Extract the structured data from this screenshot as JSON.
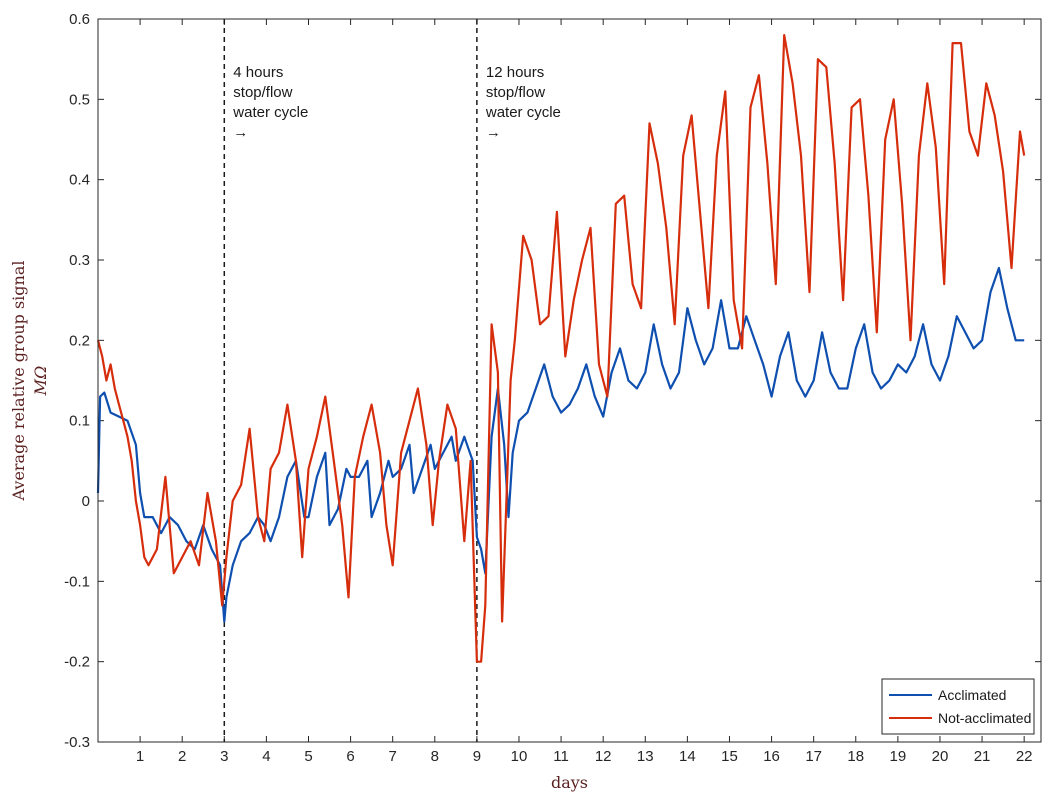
{
  "chart_data": {
    "type": "line",
    "title": "",
    "xlabel": "days",
    "ylabel_line1": "Average relative group signal",
    "ylabel_line2": "MΩ",
    "xlim": [
      0,
      22.4
    ],
    "ylim": [
      -0.3,
      0.6
    ],
    "x_ticks": [
      1,
      2,
      3,
      4,
      5,
      6,
      7,
      8,
      9,
      10,
      11,
      12,
      13,
      14,
      15,
      16,
      17,
      18,
      19,
      20,
      21,
      22
    ],
    "y_ticks": [
      -0.3,
      -0.2,
      -0.1,
      0,
      0.1,
      0.2,
      0.3,
      0.4,
      0.5,
      0.6
    ],
    "y_tick_labels": [
      "-0.3",
      "-0.2",
      "-0.1",
      "0",
      "0.1",
      "0.2",
      "0.3",
      "0.4",
      "0.5",
      "0.6"
    ],
    "grid": false,
    "legend_position": "bottom-right",
    "annotations": [
      {
        "x": 3,
        "lines": [
          "4 hours",
          "stop/flow",
          "water cycle",
          "→"
        ]
      },
      {
        "x": 9,
        "lines": [
          "12 hours",
          "stop/flow",
          "water cycle",
          "→"
        ]
      }
    ],
    "series": [
      {
        "name": "Acclimated",
        "color": "#0e4fb0",
        "x": [
          0,
          0.05,
          0.15,
          0.3,
          0.5,
          0.7,
          0.9,
          1.0,
          1.1,
          1.3,
          1.5,
          1.7,
          1.9,
          2.1,
          2.3,
          2.5,
          2.7,
          2.9,
          3.0,
          3.05,
          3.2,
          3.4,
          3.6,
          3.8,
          3.95,
          4.1,
          4.3,
          4.5,
          4.7,
          4.9,
          5.0,
          5.2,
          5.4,
          5.5,
          5.7,
          5.9,
          6.0,
          6.2,
          6.4,
          6.5,
          6.7,
          6.9,
          7.0,
          7.2,
          7.4,
          7.5,
          7.7,
          7.9,
          8.0,
          8.2,
          8.4,
          8.5,
          8.7,
          8.8,
          8.9,
          9.0,
          9.1,
          9.2,
          9.35,
          9.5,
          9.65,
          9.75,
          9.85,
          10.0,
          10.2,
          10.4,
          10.6,
          10.8,
          11.0,
          11.2,
          11.4,
          11.6,
          11.8,
          12.0,
          12.2,
          12.4,
          12.6,
          12.8,
          13.0,
          13.2,
          13.4,
          13.6,
          13.8,
          14.0,
          14.2,
          14.4,
          14.6,
          14.8,
          15.0,
          15.2,
          15.4,
          15.6,
          15.8,
          16.0,
          16.2,
          16.4,
          16.6,
          16.8,
          17.0,
          17.2,
          17.4,
          17.6,
          17.8,
          18.0,
          18.2,
          18.4,
          18.6,
          18.8,
          19.0,
          19.2,
          19.4,
          19.6,
          19.8,
          20.0,
          20.2,
          20.4,
          20.6,
          20.8,
          21.0,
          21.2,
          21.4,
          21.6,
          21.8,
          22.0
        ],
        "y": [
          0.01,
          0.13,
          0.135,
          0.11,
          0.105,
          0.1,
          0.07,
          0.01,
          -0.02,
          -0.02,
          -0.04,
          -0.02,
          -0.03,
          -0.05,
          -0.06,
          -0.03,
          -0.06,
          -0.08,
          -0.15,
          -0.12,
          -0.08,
          -0.05,
          -0.04,
          -0.02,
          -0.03,
          -0.05,
          -0.02,
          0.03,
          0.05,
          -0.02,
          -0.02,
          0.03,
          0.06,
          -0.03,
          -0.01,
          0.04,
          0.03,
          0.03,
          0.05,
          -0.02,
          0.01,
          0.05,
          0.03,
          0.04,
          0.07,
          0.01,
          0.04,
          0.07,
          0.04,
          0.06,
          0.08,
          0.05,
          0.08,
          0.065,
          0.05,
          -0.045,
          -0.06,
          -0.09,
          0.08,
          0.14,
          0.07,
          -0.02,
          0.06,
          0.1,
          0.11,
          0.14,
          0.17,
          0.13,
          0.11,
          0.12,
          0.14,
          0.17,
          0.13,
          0.105,
          0.16,
          0.19,
          0.15,
          0.14,
          0.16,
          0.22,
          0.17,
          0.14,
          0.16,
          0.24,
          0.2,
          0.17,
          0.19,
          0.25,
          0.19,
          0.19,
          0.23,
          0.2,
          0.17,
          0.13,
          0.18,
          0.21,
          0.15,
          0.13,
          0.15,
          0.21,
          0.16,
          0.14,
          0.14,
          0.19,
          0.22,
          0.16,
          0.14,
          0.15,
          0.17,
          0.16,
          0.18,
          0.22,
          0.17,
          0.15,
          0.18,
          0.23,
          0.21,
          0.19,
          0.2,
          0.26,
          0.29,
          0.24,
          0.2,
          0.2
        ]
      },
      {
        "name": "Not-acclimated",
        "color": "#d62d0c",
        "x": [
          0,
          0.1,
          0.2,
          0.3,
          0.4,
          0.5,
          0.6,
          0.7,
          0.8,
          0.9,
          1.0,
          1.1,
          1.2,
          1.4,
          1.6,
          1.8,
          2.0,
          2.2,
          2.4,
          2.6,
          2.8,
          2.95,
          3.05,
          3.2,
          3.4,
          3.6,
          3.8,
          3.95,
          4.1,
          4.3,
          4.5,
          4.7,
          4.85,
          5.0,
          5.2,
          5.4,
          5.6,
          5.8,
          5.95,
          6.1,
          6.3,
          6.5,
          6.7,
          6.85,
          7.0,
          7.2,
          7.4,
          7.6,
          7.8,
          7.95,
          8.1,
          8.3,
          8.5,
          8.7,
          8.85,
          9.0,
          9.1,
          9.2,
          9.35,
          9.5,
          9.6,
          9.7,
          9.8,
          9.9,
          10.1,
          10.3,
          10.5,
          10.7,
          10.9,
          11.1,
          11.3,
          11.5,
          11.7,
          11.9,
          12.1,
          12.3,
          12.5,
          12.7,
          12.9,
          13.1,
          13.3,
          13.5,
          13.7,
          13.9,
          14.1,
          14.3,
          14.5,
          14.7,
          14.9,
          15.1,
          15.3,
          15.5,
          15.7,
          15.9,
          16.1,
          16.3,
          16.5,
          16.7,
          16.9,
          17.1,
          17.3,
          17.5,
          17.7,
          17.9,
          18.1,
          18.3,
          18.5,
          18.7,
          18.9,
          19.1,
          19.3,
          19.5,
          19.7,
          19.9,
          20.1,
          20.3,
          20.5,
          20.7,
          20.9,
          21.1,
          21.3,
          21.5,
          21.7,
          21.9,
          22.0
        ],
        "y": [
          0.2,
          0.18,
          0.15,
          0.17,
          0.14,
          0.12,
          0.1,
          0.08,
          0.05,
          0.0,
          -0.03,
          -0.07,
          -0.08,
          -0.06,
          0.03,
          -0.09,
          -0.07,
          -0.05,
          -0.08,
          0.01,
          -0.05,
          -0.13,
          -0.07,
          0.0,
          0.02,
          0.09,
          -0.02,
          -0.05,
          0.04,
          0.06,
          0.12,
          0.05,
          -0.07,
          0.04,
          0.08,
          0.13,
          0.05,
          -0.03,
          -0.12,
          0.03,
          0.08,
          0.12,
          0.06,
          -0.03,
          -0.08,
          0.06,
          0.1,
          0.14,
          0.07,
          -0.03,
          0.05,
          0.12,
          0.09,
          -0.05,
          0.05,
          -0.2,
          -0.2,
          -0.13,
          0.22,
          0.16,
          -0.15,
          0.0,
          0.15,
          0.2,
          0.33,
          0.3,
          0.22,
          0.23,
          0.36,
          0.18,
          0.25,
          0.3,
          0.34,
          0.17,
          0.13,
          0.37,
          0.38,
          0.27,
          0.24,
          0.47,
          0.42,
          0.34,
          0.22,
          0.43,
          0.48,
          0.36,
          0.24,
          0.43,
          0.51,
          0.25,
          0.19,
          0.49,
          0.53,
          0.42,
          0.27,
          0.58,
          0.52,
          0.43,
          0.26,
          0.55,
          0.54,
          0.42,
          0.25,
          0.49,
          0.5,
          0.38,
          0.21,
          0.45,
          0.5,
          0.37,
          0.2,
          0.43,
          0.52,
          0.44,
          0.27,
          0.57,
          0.57,
          0.46,
          0.43,
          0.52,
          0.48,
          0.41,
          0.29,
          0.46,
          0.43
        ]
      }
    ]
  }
}
